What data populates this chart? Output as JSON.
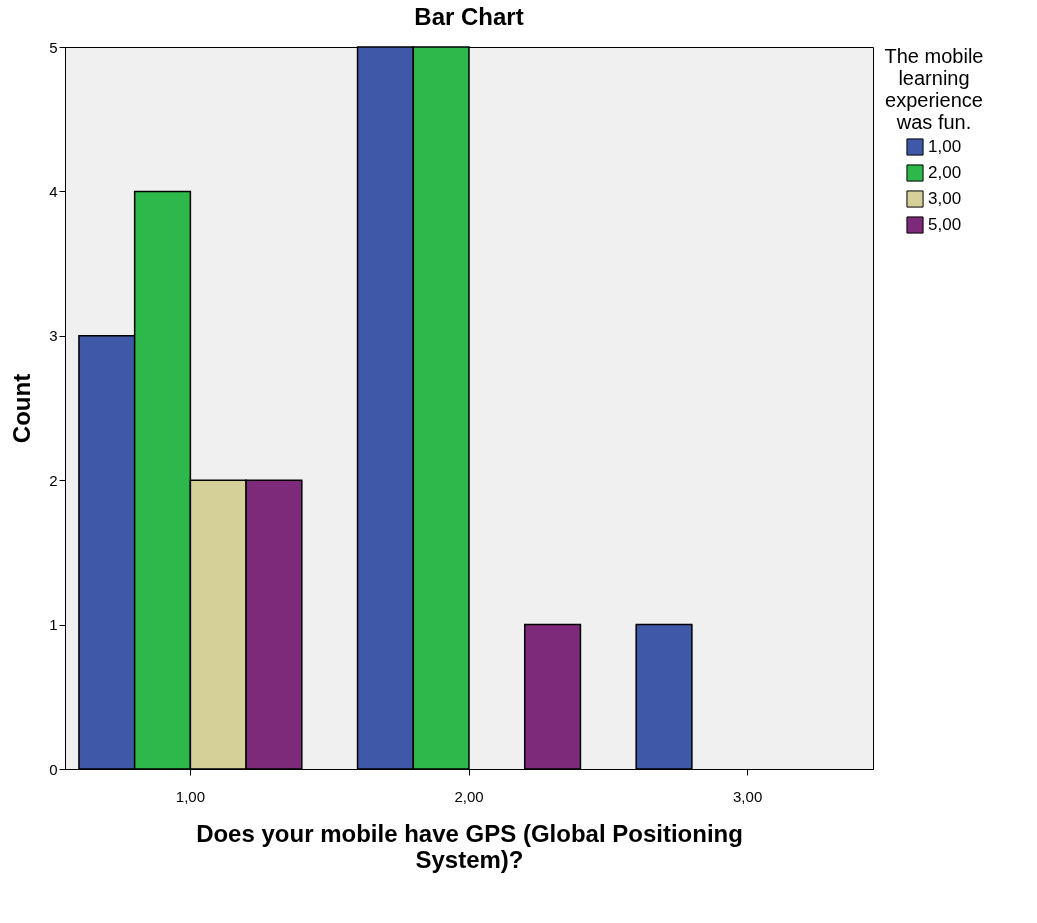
{
  "chart_data": {
    "type": "bar",
    "title": "Bar Chart",
    "xlabel": "Does your mobile have GPS (Global Positioning System)?",
    "ylabel": "Count",
    "legend_title": "The mobile learning experience was fun.",
    "legend": "top right",
    "categories": [
      "1,00",
      "2,00",
      "3,00"
    ],
    "series": [
      {
        "name": "1,00",
        "color": "#3f59a8",
        "values": [
          3,
          5,
          1
        ]
      },
      {
        "name": "2,00",
        "color": "#2eb74a",
        "values": [
          4,
          5,
          null
        ]
      },
      {
        "name": "3,00",
        "color": "#d5cf98",
        "values": [
          2,
          null,
          null
        ]
      },
      {
        "name": "5,00",
        "color": "#7e2a7b",
        "values": [
          2,
          1,
          null
        ]
      }
    ],
    "ylim": [
      0,
      5
    ],
    "yticks": [
      0,
      1,
      2,
      3,
      4,
      5
    ]
  }
}
